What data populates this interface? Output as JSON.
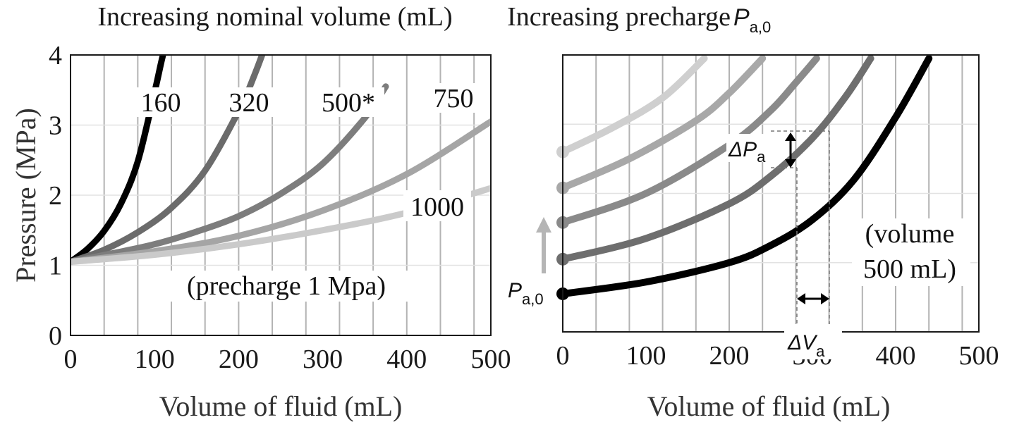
{
  "chart_data": [
    {
      "type": "line",
      "title": "Increasing nominal volume (mL)",
      "xlabel": "Volume of fluid (mL)",
      "ylabel": "Pressure (MPa)",
      "xlim": [
        0,
        500
      ],
      "ylim": [
        0,
        4
      ],
      "xticks": [
        0,
        100,
        200,
        300,
        400,
        500
      ],
      "yticks": [
        0,
        1,
        2,
        3,
        4
      ],
      "grid": "vertical",
      "note": "(precharge 1 Mpa)",
      "series": [
        {
          "name": "160",
          "color": "#000000",
          "x": [
            0,
            20,
            40,
            60,
            80,
            100,
            110,
            120
          ],
          "y": [
            1.05,
            1.23,
            1.49,
            1.88,
            2.48,
            3.47,
            4.0,
            4.4
          ]
        },
        {
          "name": "320",
          "color": "#6b6b6b",
          "x": [
            0,
            40,
            80,
            120,
            160,
            200,
            220,
            240
          ],
          "y": [
            1.05,
            1.22,
            1.47,
            1.82,
            2.35,
            3.2,
            3.75,
            4.4
          ]
        },
        {
          "name": "500*",
          "color": "#7d7d7d",
          "x": [
            0,
            50,
            100,
            150,
            200,
            250,
            300,
            350,
            375
          ],
          "y": [
            1.05,
            1.17,
            1.3,
            1.48,
            1.7,
            2.02,
            2.45,
            3.1,
            3.55
          ]
        },
        {
          "name": "750",
          "color": "#a5a5a5",
          "x": [
            0,
            100,
            200,
            300,
            400,
            500
          ],
          "y": [
            1.05,
            1.2,
            1.42,
            1.78,
            2.3,
            3.05
          ]
        },
        {
          "name": "1000",
          "color": "#cacaca",
          "x": [
            0,
            100,
            200,
            300,
            400,
            500
          ],
          "y": [
            1.05,
            1.15,
            1.3,
            1.5,
            1.75,
            2.1
          ]
        }
      ]
    },
    {
      "type": "line",
      "title": "Increasing precharge ",
      "title_symbol": "P",
      "title_subscript": "a,0",
      "xlabel": "Volume of fluid (mL)",
      "xlim": [
        0,
        500
      ],
      "ylim": [
        0,
        4
      ],
      "xticks": [
        0,
        100,
        200,
        300,
        400,
        500
      ],
      "grid": "vertical",
      "note_lines": [
        "(volume",
        "500 mL)"
      ],
      "arrow_label_symbol": "P",
      "arrow_label_subscript": "a,0",
      "delta_p_symbol": "ΔP",
      "delta_p_subscript": "a",
      "delta_v_symbol": "ΔV",
      "delta_v_subscript": "a",
      "series": [
        {
          "color": "#000000",
          "x": [
            0,
            100,
            200,
            250,
            300,
            350,
            400,
            440
          ],
          "y": [
            0.55,
            0.72,
            1.0,
            1.25,
            1.62,
            2.2,
            3.1,
            3.95
          ]
        },
        {
          "color": "#6e6e6e",
          "x": [
            0,
            100,
            200,
            250,
            300,
            340,
            370
          ],
          "y": [
            1.05,
            1.35,
            1.85,
            2.25,
            2.8,
            3.4,
            3.95
          ]
        },
        {
          "color": "#8a8a8a",
          "x": [
            0,
            100,
            200,
            250,
            280,
            305
          ],
          "y": [
            1.58,
            2.0,
            2.7,
            3.2,
            3.6,
            3.95
          ]
        },
        {
          "color": "#a8a8a8",
          "x": [
            0,
            80,
            160,
            200,
            240
          ],
          "y": [
            2.08,
            2.5,
            3.05,
            3.45,
            3.95
          ]
        },
        {
          "color": "#cfcfcf",
          "x": [
            0,
            60,
            120,
            170
          ],
          "y": [
            2.6,
            2.95,
            3.38,
            3.95
          ]
        }
      ]
    }
  ]
}
